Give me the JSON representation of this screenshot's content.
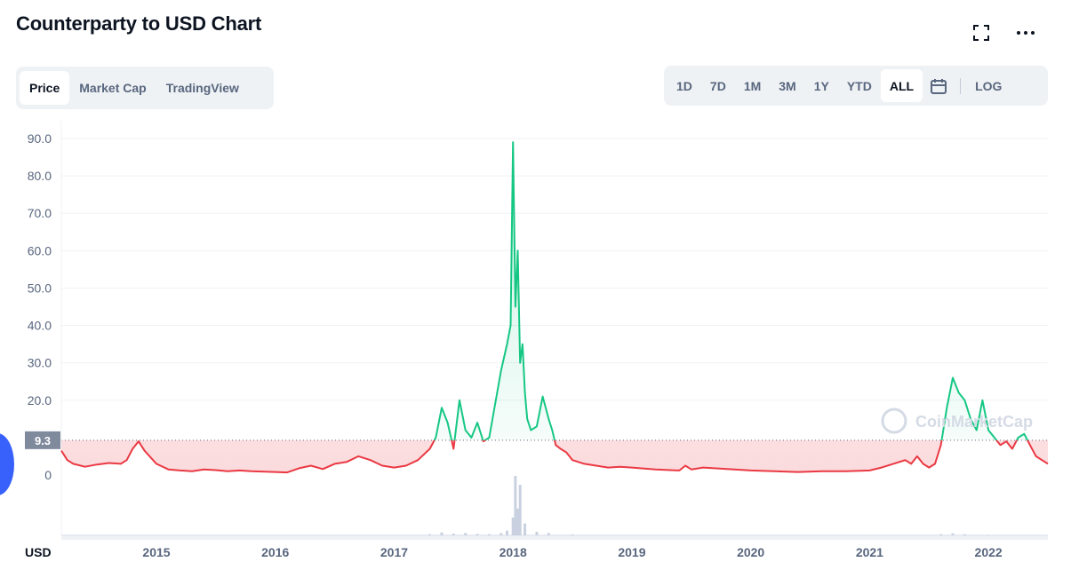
{
  "header": {
    "title": "Counterparty to USD Chart",
    "fullscreen_icon": "expand-icon",
    "more_icon": "more-horizontal-icon"
  },
  "tabs": [
    {
      "label": "Price",
      "active": true
    },
    {
      "label": "Market Cap",
      "active": false
    },
    {
      "label": "TradingView",
      "active": false
    }
  ],
  "ranges": [
    {
      "label": "1D",
      "active": false
    },
    {
      "label": "7D",
      "active": false
    },
    {
      "label": "1M",
      "active": false
    },
    {
      "label": "3M",
      "active": false
    },
    {
      "label": "1Y",
      "active": false
    },
    {
      "label": "YTD",
      "active": false
    },
    {
      "label": "ALL",
      "active": true
    }
  ],
  "range_extra": {
    "calendar_icon": "calendar-icon",
    "log_label": "LOG"
  },
  "colors": {
    "up": "#16c784",
    "down": "#ea3943",
    "grid": "#eff2f5",
    "axis_text": "#58667e",
    "volume": "#c9d1e0"
  },
  "chart_data": {
    "type": "line",
    "title": "",
    "xlabel": "",
    "ylabel": "",
    "currency_label": "USD",
    "watermark": "CoinMarketCap",
    "x_range": [
      2014.2,
      2022.5
    ],
    "ylim": [
      0,
      90
    ],
    "yticks": [
      "90.0",
      "80.0",
      "70.0",
      "60.0",
      "50.0",
      "40.0",
      "30.0",
      "20.0",
      "9.3",
      "0"
    ],
    "reference_price": 9.3,
    "reference_label": "9.3",
    "xticks": [
      {
        "label": "2015",
        "x": 2015.0
      },
      {
        "label": "2016",
        "x": 2016.0
      },
      {
        "label": "2017",
        "x": 2017.0
      },
      {
        "label": "2018",
        "x": 2018.0
      },
      {
        "label": "2019",
        "x": 2019.0
      },
      {
        "label": "2020",
        "x": 2020.0
      },
      {
        "label": "2021",
        "x": 2021.0
      },
      {
        "label": "2022",
        "x": 2022.0
      }
    ],
    "series": [
      {
        "x": [
          2014.2,
          2014.25,
          2014.3,
          2014.4,
          2014.5,
          2014.6,
          2014.7,
          2014.75,
          2014.8,
          2014.85,
          2014.9,
          2015.0,
          2015.1,
          2015.2,
          2015.3,
          2015.4,
          2015.5,
          2015.6,
          2015.7,
          2015.8,
          2016.0,
          2016.1,
          2016.2,
          2016.3,
          2016.4,
          2016.5,
          2016.6,
          2016.7,
          2016.8,
          2016.9,
          2017.0,
          2017.1,
          2017.2,
          2017.3,
          2017.35,
          2017.4,
          2017.45,
          2017.5,
          2017.55,
          2017.6,
          2017.65,
          2017.7,
          2017.75,
          2017.8,
          2017.85,
          2017.9,
          2017.95,
          2017.98,
          2018.0,
          2018.02,
          2018.04,
          2018.06,
          2018.08,
          2018.1,
          2018.12,
          2018.15,
          2018.2,
          2018.25,
          2018.3,
          2018.33,
          2018.36,
          2018.4,
          2018.45,
          2018.5,
          2018.55,
          2018.6,
          2018.7,
          2018.8,
          2018.9,
          2019.0,
          2019.2,
          2019.4,
          2019.45,
          2019.5,
          2019.6,
          2019.8,
          2020.0,
          2020.2,
          2020.4,
          2020.6,
          2020.8,
          2021.0,
          2021.1,
          2021.2,
          2021.3,
          2021.35,
          2021.4,
          2021.45,
          2021.5,
          2021.55,
          2021.6,
          2021.62,
          2021.65,
          2021.7,
          2021.75,
          2021.8,
          2021.85,
          2021.9,
          2021.95,
          2022.0,
          2022.05,
          2022.1,
          2022.15,
          2022.2,
          2022.25,
          2022.3,
          2022.35,
          2022.4,
          2022.45,
          2022.5
        ],
        "values": [
          6.5,
          4.0,
          3.0,
          2.2,
          2.8,
          3.2,
          3.0,
          4.0,
          7.0,
          9.0,
          6.5,
          3.0,
          1.5,
          1.2,
          1.0,
          1.5,
          1.3,
          1.0,
          1.2,
          1.0,
          0.8,
          0.7,
          1.8,
          2.5,
          1.6,
          3.0,
          3.5,
          5.0,
          4.0,
          2.5,
          2.0,
          2.5,
          4.0,
          7.0,
          10.0,
          18.0,
          14.0,
          7.0,
          20.0,
          12.0,
          10.0,
          14.0,
          9.0,
          10.0,
          19.0,
          28.0,
          35.0,
          40.0,
          89.0,
          45.0,
          60.0,
          30.0,
          35.0,
          22.0,
          15.0,
          12.0,
          13.0,
          21.0,
          15.0,
          12.0,
          8.0,
          7.0,
          6.0,
          4.0,
          3.5,
          3.0,
          2.5,
          2.0,
          2.2,
          2.0,
          1.5,
          1.2,
          2.5,
          1.5,
          2.0,
          1.6,
          1.2,
          1.0,
          0.8,
          1.0,
          1.0,
          1.2,
          2.0,
          3.0,
          4.0,
          3.0,
          5.0,
          3.0,
          2.0,
          3.0,
          8.0,
          12.0,
          18.0,
          26.0,
          22.0,
          20.0,
          15.0,
          12.0,
          20.0,
          12.0,
          10.0,
          8.0,
          9.0,
          7.0,
          10.0,
          11.0,
          8.0,
          5.0,
          4.0,
          3.0
        ]
      }
    ],
    "volume": {
      "x": [
        2014.3,
        2014.8,
        2015.5,
        2016.5,
        2017.3,
        2017.4,
        2017.5,
        2017.6,
        2017.7,
        2017.8,
        2017.9,
        2017.95,
        2018.0,
        2018.02,
        2018.04,
        2018.06,
        2018.1,
        2018.2,
        2018.3,
        2018.5,
        2019.0,
        2020.0,
        2021.0,
        2021.6,
        2021.7,
        2021.8,
        2022.0
      ],
      "values": [
        0.3,
        0.5,
        0.2,
        0.4,
        2.0,
        5.0,
        3.0,
        4.0,
        2.5,
        2.0,
        4.0,
        8.0,
        30.0,
        100.0,
        45.0,
        85.0,
        20.0,
        6.0,
        4.0,
        1.5,
        0.5,
        0.3,
        0.4,
        2.0,
        3.5,
        2.0,
        1.0
      ]
    }
  }
}
